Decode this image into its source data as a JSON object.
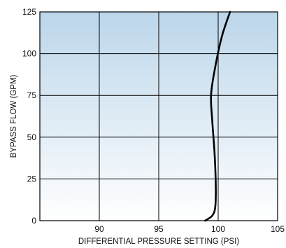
{
  "chart_data": {
    "type": "line",
    "title": "",
    "xlabel": "DIFFERENTIAL PRESSURE SETTING (PSI)",
    "ylabel": "BYPASS FLOW (GPM)",
    "xlim": [
      85,
      105
    ],
    "ylim": [
      0,
      125
    ],
    "x_ticks": [
      "90",
      "95",
      "100",
      "105"
    ],
    "y_ticks": [
      "0",
      "25",
      "50",
      "75",
      "100",
      "125"
    ],
    "grid": true,
    "background": "vertical gradient from light blue at top to white at bottom",
    "colors": {
      "line": "#000000",
      "grid": "#000000",
      "gradient_top": "#bcd6ea",
      "gradient_bottom": "#ffffff"
    },
    "series": [
      {
        "values": [
          {
            "x": 98.9,
            "y": 0
          },
          {
            "x": 99.5,
            "y": 3
          },
          {
            "x": 99.75,
            "y": 8
          },
          {
            "x": 99.8,
            "y": 20
          },
          {
            "x": 99.7,
            "y": 40
          },
          {
            "x": 99.5,
            "y": 60
          },
          {
            "x": 99.4,
            "y": 75
          },
          {
            "x": 99.7,
            "y": 90
          },
          {
            "x": 100.3,
            "y": 110
          },
          {
            "x": 101.0,
            "y": 125
          }
        ]
      }
    ]
  }
}
